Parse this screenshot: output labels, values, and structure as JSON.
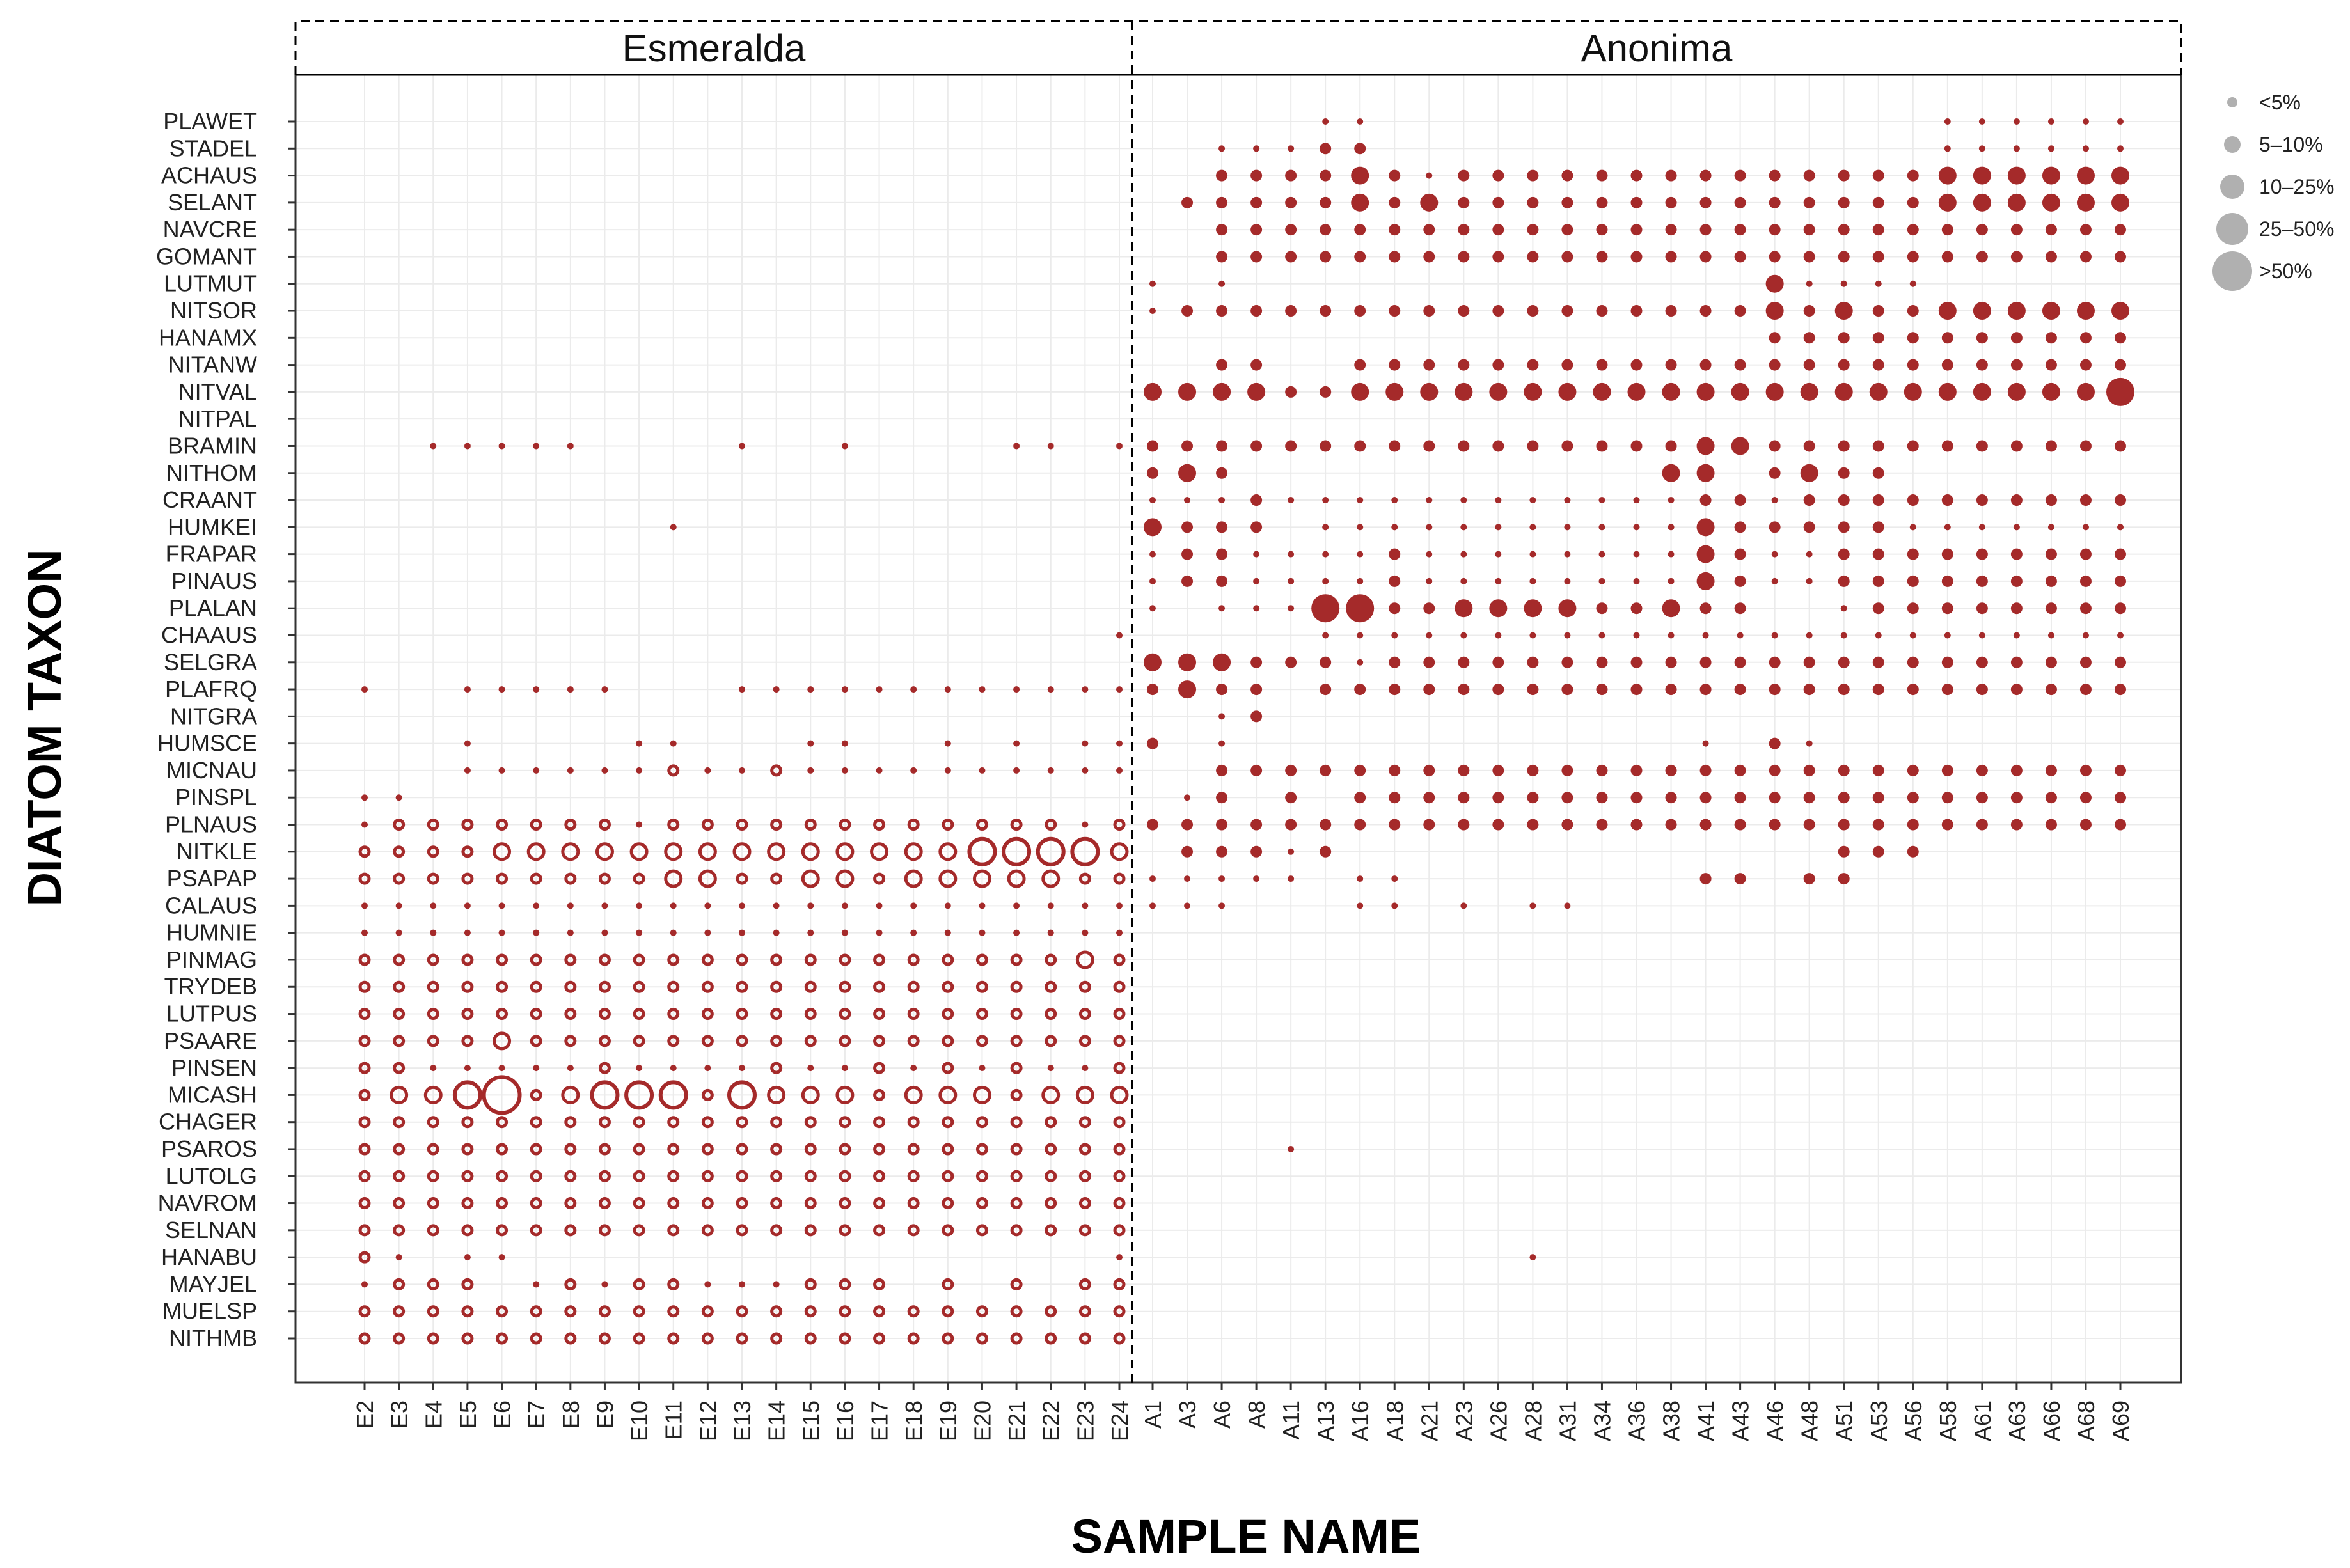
{
  "chart_data": {
    "type": "scatter",
    "xlabel": "SAMPLE NAME",
    "ylabel": "DIATOM TAXON",
    "facets": [
      {
        "name": "Esmeralda",
        "samples": [
          "E2",
          "E3",
          "E4",
          "E5",
          "E6",
          "E7",
          "E8",
          "E9",
          "E10",
          "E11",
          "E12",
          "E13",
          "E14",
          "E15",
          "E16",
          "E17",
          "E18",
          "E19",
          "E20",
          "E21",
          "E22",
          "E23",
          "E24"
        ]
      },
      {
        "name": "Anonima",
        "samples": [
          "A1",
          "A3",
          "A6",
          "A8",
          "A11",
          "A13",
          "A16",
          "A18",
          "A21",
          "A23",
          "A26",
          "A28",
          "A31",
          "A34",
          "A36",
          "A38",
          "A41",
          "A43",
          "A46",
          "A48",
          "A51",
          "A53",
          "A56",
          "A58",
          "A61",
          "A63",
          "A66",
          "A68",
          "A69"
        ]
      }
    ],
    "taxa": [
      "PLAWET",
      "STADEL",
      "ACHAUS",
      "SELANT",
      "NAVCRE",
      "GOMANT",
      "LUTMUT",
      "NITSOR",
      "HANAMX",
      "NITANW",
      "NITVAL",
      "NITPAL",
      "BRAMIN",
      "NITHOM",
      "CRAANT",
      "HUMKEI",
      "FRAPAR",
      "PINAUS",
      "PLALAN",
      "CHAAUS",
      "SELGRA",
      "PLAFRQ",
      "NITGRA",
      "HUMSCE",
      "MICNAU",
      "PINSPL",
      "PLNAUS",
      "NITKLE",
      "PSAPAP",
      "CALAUS",
      "HUMNIE",
      "PINMAG",
      "TRYDEB",
      "LUTPUS",
      "PSAARE",
      "PINSEN",
      "MICASH",
      "CHAGER",
      "PSAROS",
      "LUTOLG",
      "NAVROM",
      "SELNAN",
      "HANABU",
      "MAYJEL",
      "MUELSP",
      "NITHMB"
    ],
    "size_classes": [
      "<5%",
      "5–10%",
      "10–25%",
      "25–50%",
      ">50%"
    ],
    "legend_position": "right",
    "grid": true,
    "colors": {
      "points": "#a52a2a",
      "legend": "#b0b0b0",
      "grid": "#ebebeb"
    },
    "matrix_note": "size class per taxon row: 0 = absent, 1 = <5%, 2 = 5-10%, 3 = 10-25%, 4 = 25-50%, 5 = >50%",
    "abundance": {
      "Esmeralda": [
        "00000000000000000000000",
        "00000000000000000000000",
        "00000000000000000000000",
        "00000000000000000000000",
        "00000000000000000000000",
        "00000000000000000000000",
        "00000000000000000000000",
        "00000000000000000000000",
        "00000000000000000000000",
        "00000000000000000000000",
        "00000000000000000000000",
        "00000000000000000000000",
        "00111110000100100001101",
        "00000000000000000000000",
        "00000000000000000000000",
        "00000000010000000000000",
        "00000000000000000000000",
        "00000000000000000000000",
        "00000000000000000000000",
        "00000000000000000000001",
        "00000000000000000000000",
        "10011111000111111111111",
        "00000000000000000000000",
        "00010000110001100101011",
        "00011111121121111111111",
        "11000000000000000000000",
        "12222222122222222222212",
        "22223333333333333344443",
        "22222222233223323333322",
        "11111111111111111111111",
        "11111111111111111111111",
        "22222222222222222222232",
        "22222222222222222222222",
        "22222222222222222222222",
        "22223222222222222222222",
        "22111112111121121212112",
        "23345234442433323332333",
        "22222222222222222222222",
        "22222222222222222222222",
        "22222222222222222222222",
        "22222222222222222222222",
        "22222222222222222222222",
        "21011000000000000000001",
        "12220121221112220202022",
        "22222222222222222222222",
        "22222222222222222222222"
      ],
      "Anonima": [
        "00000110000000000000000111111",
        "00111220000000000000000111111",
        "00222232122222222222222333333",
        "02222232322222222222222333333",
        "00222222222222222222222222222",
        "00222222222222222222222222222",
        "10100000000000000031111000000",
        "12222222222222222232322333333",
        "00000000000000000022222222222",
        "00220022222222222222222222222",
        "33332233333333333333333333334",
        "00000000000000000000000000000",
        "22222222222222223322222222222",
        "23200000000000033023220000000",
        "11121111111111112212222222222",
        "32220111111111113222221111111",
        "12211112111111113211222222222",
        "12211112111111113211222222222",
        "10111442233332232200122222222",
        "00000111111111111111111111111",
        "33322212222222222222222222222",
        "23220222222222222222222222222",
        "00120000000000000000000000000",
        "20100000000000001021000000000",
        "00222222222222222222222222222",
        "01202022222222222222222222222",
        "22222222222222222222222222222",
        "02221200000000000000222000000",
        "11111011000000002202200000000",
        "11100011010110000000000000000",
        "00000000000000000000000000000",
        "00000000000000000000000000000",
        "00000000000000000000000000000",
        "00000000000000000000000000000",
        "00000000000000000000000000000",
        "00000000000000000000000000000",
        "00000000000000000000000000000",
        "00000000000000000000000000000",
        "00001000000000000000000000000",
        "00000000000000000000000000000",
        "00000000000000000000000000000",
        "00000000000000000000000000000",
        "00000000000100000000000000000",
        "00000000000000000000000000000",
        "00000000000000000000000000000",
        "00000000000000000000000000000"
      ]
    }
  }
}
